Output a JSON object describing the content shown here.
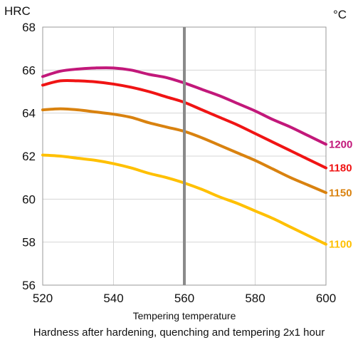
{
  "chart_data": {
    "type": "line",
    "ylabel": "HRC",
    "xunit": "°C",
    "xlabel": "Tempering temperature",
    "caption": "Hardness after hardening, quenching and tempering  2x1 hour",
    "xlim": [
      520,
      600
    ],
    "ylim": [
      56,
      68
    ],
    "xticks": [
      520,
      540,
      560,
      580,
      600
    ],
    "yticks": [
      56,
      58,
      60,
      62,
      64,
      66,
      68
    ],
    "reference_line_x": 560,
    "grid": true,
    "series": [
      {
        "name": "1200",
        "color": "#C2187A",
        "x": [
          520,
          525,
          530,
          535,
          540,
          545,
          550,
          555,
          560,
          565,
          570,
          575,
          580,
          585,
          590,
          595,
          600
        ],
        "values": [
          65.7,
          65.95,
          66.05,
          66.1,
          66.1,
          66.0,
          65.8,
          65.65,
          65.4,
          65.1,
          64.8,
          64.45,
          64.1,
          63.7,
          63.35,
          62.95,
          62.55
        ]
      },
      {
        "name": "1180",
        "color": "#F01414",
        "x": [
          520,
          525,
          530,
          535,
          540,
          545,
          550,
          555,
          560,
          565,
          570,
          575,
          580,
          585,
          590,
          595,
          600
        ],
        "values": [
          65.3,
          65.5,
          65.5,
          65.45,
          65.35,
          65.2,
          65.0,
          64.75,
          64.5,
          64.15,
          63.8,
          63.45,
          63.05,
          62.65,
          62.25,
          61.85,
          61.45
        ]
      },
      {
        "name": "1150",
        "color": "#D9820F",
        "x": [
          520,
          525,
          530,
          535,
          540,
          545,
          550,
          555,
          560,
          565,
          570,
          575,
          580,
          585,
          590,
          595,
          600
        ],
        "values": [
          64.15,
          64.2,
          64.15,
          64.05,
          63.95,
          63.8,
          63.55,
          63.35,
          63.15,
          62.85,
          62.5,
          62.15,
          61.8,
          61.4,
          61.0,
          60.65,
          60.3
        ]
      },
      {
        "name": "1100",
        "color": "#FFC000",
        "x": [
          520,
          525,
          530,
          535,
          540,
          545,
          550,
          555,
          560,
          565,
          570,
          575,
          580,
          585,
          590,
          595,
          600
        ],
        "values": [
          62.05,
          62.0,
          61.9,
          61.8,
          61.65,
          61.45,
          61.2,
          61.0,
          60.75,
          60.45,
          60.1,
          59.8,
          59.45,
          59.1,
          58.7,
          58.3,
          57.9
        ]
      }
    ]
  }
}
